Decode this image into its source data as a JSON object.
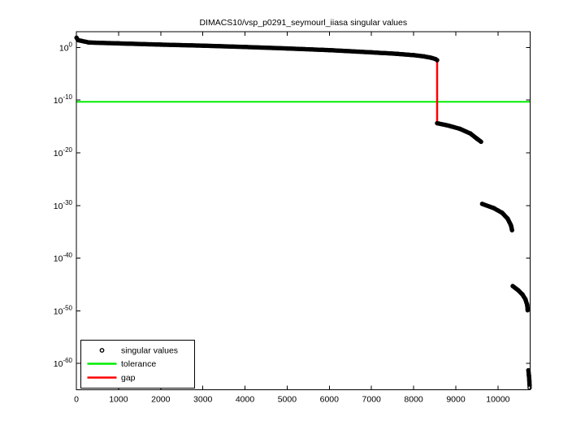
{
  "chart_data": {
    "type": "scatter",
    "title": "DIMACS10/vsp_p0291_seymourl_iiasa singular values",
    "yscale": "log",
    "xlim": [
      0,
      10764
    ],
    "ylim": [
      1e-65,
      1000
    ],
    "ylim_log10": [
      -65,
      3
    ],
    "grid": false,
    "x_ticks": [
      0,
      1000,
      2000,
      3000,
      4000,
      5000,
      6000,
      7000,
      8000,
      9000,
      10000
    ],
    "y_tick_base": "10",
    "y_tick_exponents": [
      0,
      -10,
      -20,
      -30,
      -40,
      -50,
      -60
    ],
    "colors": {
      "singular_values": "#000000",
      "tolerance": "#00ee00",
      "gap": "#ff0000",
      "frame": "#000000",
      "background": "#ffffff"
    },
    "tolerance": {
      "label": "tolerance",
      "value": 5e-11,
      "log10": -10.3
    },
    "gap": {
      "label": "gap",
      "index": 8557,
      "top_log10": -2.4,
      "bottom_log10": -14.38
    },
    "series": {
      "name": "singular values",
      "marker": "o",
      "segments_log10": [
        [
          [
            3,
            1.85
          ],
          [
            40,
            1.4
          ],
          [
            300,
            0.95
          ],
          [
            1000,
            0.78
          ],
          [
            2000,
            0.55
          ],
          [
            3000,
            0.35
          ],
          [
            4000,
            0.1
          ],
          [
            5000,
            -0.18
          ],
          [
            6000,
            -0.5
          ],
          [
            7000,
            -0.92
          ],
          [
            7600,
            -1.2
          ],
          [
            8000,
            -1.45
          ],
          [
            8250,
            -1.7
          ],
          [
            8420,
            -1.95
          ],
          [
            8520,
            -2.2
          ],
          [
            8557,
            -2.4
          ]
        ],
        [
          [
            8557,
            -14.38
          ],
          [
            8800,
            -14.78
          ],
          [
            9100,
            -15.45
          ],
          [
            9350,
            -16.35
          ],
          [
            9500,
            -17.3
          ],
          [
            9600,
            -17.9
          ]
        ],
        [
          [
            9625,
            -29.7
          ],
          [
            9900,
            -30.5
          ],
          [
            10100,
            -31.4
          ],
          [
            10230,
            -32.5
          ],
          [
            10310,
            -33.8
          ],
          [
            10335,
            -34.7
          ]
        ],
        [
          [
            10350,
            -45.3
          ],
          [
            10480,
            -46.1
          ],
          [
            10580,
            -46.9
          ],
          [
            10650,
            -47.8
          ],
          [
            10695,
            -48.9
          ],
          [
            10705,
            -49.9
          ]
        ],
        [
          [
            10722,
            -61.3
          ],
          [
            10735,
            -62.3
          ],
          [
            10745,
            -63.3
          ],
          [
            10750,
            -64.2
          ]
        ]
      ],
      "isolated_points_log10": [
        [
          10753,
          -64.6
        ]
      ]
    },
    "legend": {
      "position": "southwest",
      "entries": [
        "singular values",
        "tolerance",
        "gap"
      ]
    }
  }
}
